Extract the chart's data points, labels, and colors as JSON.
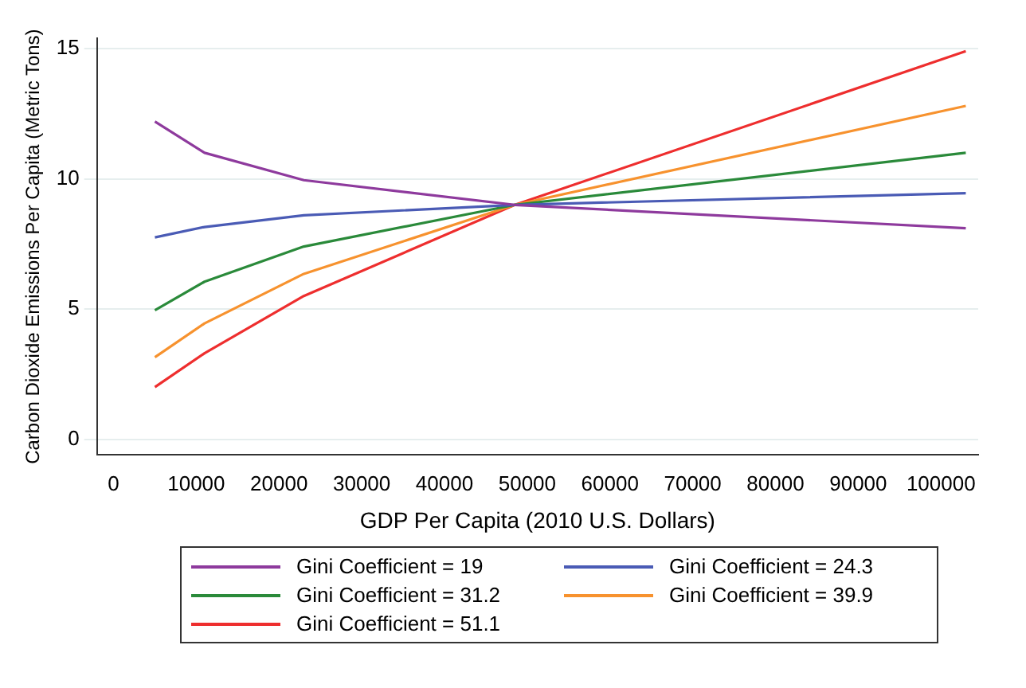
{
  "chart_data": {
    "type": "line",
    "xlabel": "GDP Per Capita (2010 U.S. Dollars)",
    "ylabel": "Carbon Dioxide Emissions Per Capita (Metric Tons)",
    "x": [
      5000,
      11000,
      23000,
      48500,
      103000
    ],
    "xlim": [
      -2000,
      104500
    ],
    "xticks": [
      0,
      10000,
      20000,
      30000,
      40000,
      50000,
      60000,
      70000,
      80000,
      90000,
      100000
    ],
    "ylim": [
      -0.6,
      15.4
    ],
    "yticks": [
      0,
      5,
      10,
      15
    ],
    "grid": "y",
    "legend": "bottom",
    "marker": "none",
    "line_style": "solid",
    "series": [
      {
        "name": "Gini Coefficient = 19",
        "color": "#8e3a9d",
        "values": [
          12.2,
          11.0,
          9.95,
          9.0,
          8.1
        ]
      },
      {
        "name": "Gini Coefficient = 24.3",
        "color": "#4a5bb5",
        "values": [
          7.75,
          8.15,
          8.6,
          9.0,
          9.45
        ]
      },
      {
        "name": "Gini Coefficient = 31.2",
        "color": "#2a8a3a",
        "values": [
          4.95,
          6.05,
          7.4,
          9.0,
          11.0
        ]
      },
      {
        "name": "Gini Coefficient = 39.9",
        "color": "#f7922e",
        "values": [
          3.15,
          4.45,
          6.35,
          9.0,
          12.8
        ]
      },
      {
        "name": "Gini Coefficient = 51.1",
        "color": "#ee2e2e",
        "values": [
          2.0,
          3.3,
          5.5,
          9.0,
          14.9
        ]
      }
    ]
  }
}
